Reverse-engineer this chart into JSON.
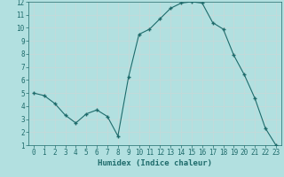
{
  "x": [
    0,
    1,
    2,
    3,
    4,
    5,
    6,
    7,
    8,
    9,
    10,
    11,
    12,
    13,
    14,
    15,
    16,
    17,
    18,
    19,
    20,
    21,
    22,
    23
  ],
  "y": [
    5.0,
    4.8,
    4.2,
    3.3,
    2.7,
    3.4,
    3.7,
    3.2,
    1.7,
    6.2,
    9.5,
    9.9,
    10.7,
    11.5,
    11.9,
    12.0,
    11.9,
    10.4,
    9.9,
    7.9,
    6.4,
    4.6,
    2.3,
    1.0
  ],
  "line_color": "#1e6b6b",
  "marker": "+",
  "marker_size": 3,
  "marker_linewidth": 1.0,
  "bg_color": "#b2e0e0",
  "grid_color": "#c8d8d8",
  "xlabel": "Humidex (Indice chaleur)",
  "xlim": [
    -0.5,
    23.5
  ],
  "ylim": [
    1,
    12
  ],
  "yticks": [
    1,
    2,
    3,
    4,
    5,
    6,
    7,
    8,
    9,
    10,
    11,
    12
  ],
  "xticks": [
    0,
    1,
    2,
    3,
    4,
    5,
    6,
    7,
    8,
    9,
    10,
    11,
    12,
    13,
    14,
    15,
    16,
    17,
    18,
    19,
    20,
    21,
    22,
    23
  ],
  "font_color": "#1e6b6b",
  "tick_label_fontsize": 5.5,
  "xlabel_fontsize": 6.5,
  "linewidth": 0.8
}
